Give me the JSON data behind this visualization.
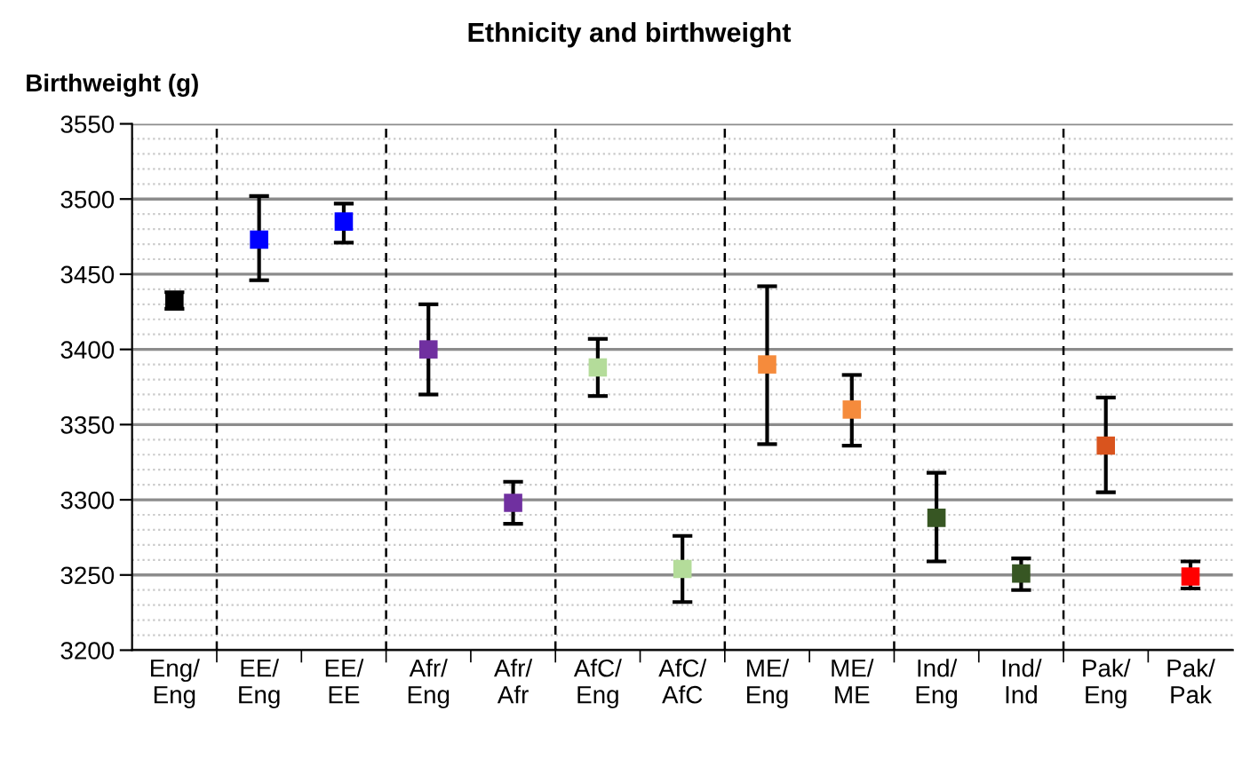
{
  "chart_data": {
    "type": "scatter",
    "title": "Ethnicity and birthweight",
    "ylabel": "Birthweight (g)",
    "categories": [
      "Eng/\nEng",
      "EE/\nEng",
      "EE/\nEE",
      "Afr/\nEng",
      "Afr/\nAfr",
      "AfC/\nEng",
      "AfC/\nAfC",
      "ME/\nEng",
      "ME/\nME",
      "Ind/\nEng",
      "Ind/\nInd",
      "Pak/\nEng",
      "Pak/\nPak"
    ],
    "values": [
      3432,
      3473,
      3485,
      3400,
      3298,
      3388,
      3254,
      3390,
      3360,
      3288,
      3251,
      3336,
      3249
    ],
    "errors": [
      [
        3427,
        3438
      ],
      [
        3446,
        3502
      ],
      [
        3471,
        3497
      ],
      [
        3370,
        3430
      ],
      [
        3284,
        3312
      ],
      [
        3369,
        3407
      ],
      [
        3232,
        3276
      ],
      [
        3337,
        3442
      ],
      [
        3336,
        3383
      ],
      [
        3259,
        3318
      ],
      [
        3240,
        3261
      ],
      [
        3305,
        3368
      ],
      [
        3241,
        3259
      ]
    ],
    "colors": [
      "#000000",
      "#0000ff",
      "#0000ff",
      "#7030a0",
      "#7030a0",
      "#b4dc9a",
      "#b4dc9a",
      "#f58b3c",
      "#f58b3c",
      "#375623",
      "#375623",
      "#d9541e",
      "#ff0000"
    ],
    "marker": "square",
    "ylim": [
      3200,
      3550
    ],
    "yticks": [
      3200,
      {
        "value": 3210,
        "label": null
      },
      {
        "value": 3220,
        "label": null
      },
      {
        "value": 3230,
        "label": null
      },
      {
        "value": 3240,
        "label": null
      },
      3250,
      {
        "value": 3260,
        "label": null
      },
      {
        "value": 3270,
        "label": null
      },
      {
        "value": 3280,
        "label": null
      },
      {
        "value": 3290,
        "label": null
      },
      3300,
      {
        "value": 3310,
        "label": null
      },
      {
        "value": 3320,
        "label": null
      },
      {
        "value": 3330,
        "label": null
      },
      {
        "value": 3340,
        "label": null
      },
      3350,
      {
        "value": 3360,
        "label": null
      },
      {
        "value": 3370,
        "label": null
      },
      {
        "value": 3380,
        "label": null
      },
      {
        "value": 3390,
        "label": null
      },
      3400,
      {
        "value": 3410,
        "label": null
      },
      {
        "value": 3420,
        "label": null
      },
      {
        "value": 3430,
        "label": null
      },
      {
        "value": 3440,
        "label": null
      },
      3450,
      {
        "value": 3460,
        "label": null
      },
      {
        "value": 3470,
        "label": null
      },
      {
        "value": 3480,
        "label": null
      },
      {
        "value": 3490,
        "label": null
      },
      3500,
      {
        "value": 3510,
        "label": null
      },
      {
        "value": 3520,
        "label": null
      },
      {
        "value": 3530,
        "label": null
      },
      {
        "value": 3540,
        "label": null
      },
      3550
    ],
    "grid": "y"
  }
}
